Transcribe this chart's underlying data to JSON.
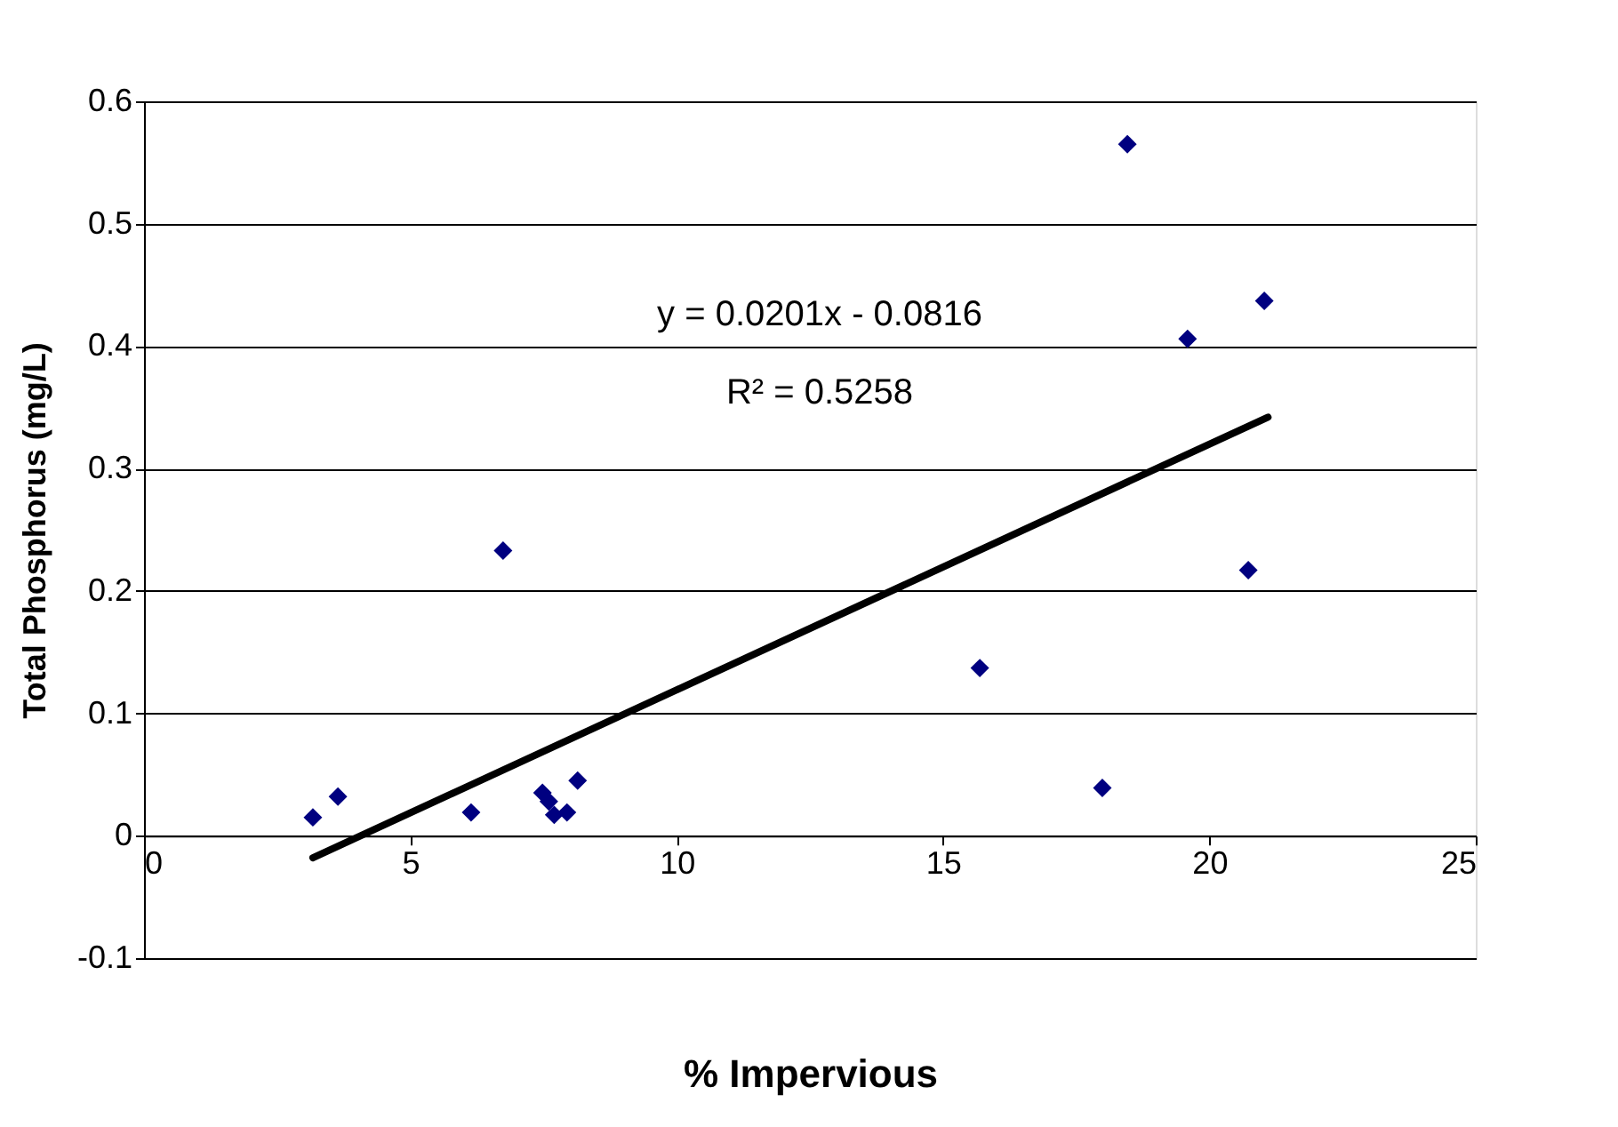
{
  "chart_data": {
    "type": "scatter",
    "xlabel": "% Impervious",
    "ylabel": "Total Phosphorus (mg/L)",
    "xlim": [
      0,
      25
    ],
    "xticks": [
      0,
      5,
      10,
      15,
      20,
      25
    ],
    "ylim": [
      -0.1,
      0.6
    ],
    "yticks": [
      -0.1,
      0,
      0.1,
      0.2,
      0.3,
      0.4,
      0.5,
      0.6
    ],
    "grid": "y",
    "marker": "diamond",
    "series": [
      {
        "color": "#000080",
        "x": [
          3.17,
          3.64,
          6.14,
          6.74,
          7.48,
          7.6,
          7.7,
          7.94,
          8.14,
          15.69,
          17.99,
          18.46,
          19.59,
          20.73,
          21.03
        ],
        "values": [
          0.015,
          0.032,
          0.019,
          0.233,
          0.035,
          0.028,
          0.017,
          0.019,
          0.045,
          0.137,
          0.039,
          0.565,
          0.406,
          0.217,
          0.437
        ]
      },
      {
        "type": "line",
        "color": "#000000",
        "marker": "none",
        "line_style": "solid",
        "x": [
          3.17,
          21.1
        ],
        "values": [
          -0.018,
          0.342
        ]
      }
    ],
    "annotations": [
      "y = 0.0201x - 0.0816",
      "R² = 0.5258"
    ]
  }
}
